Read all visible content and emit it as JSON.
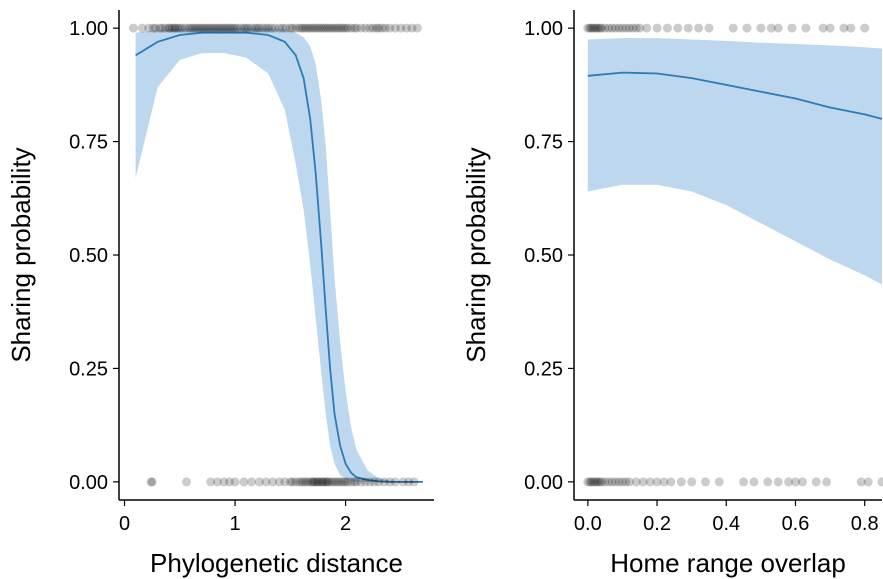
{
  "chart_data": [
    {
      "type": "line",
      "panel": "left",
      "xlabel": "Phylogenetic distance",
      "ylabel": "Sharing probability",
      "xlim": [
        -0.05,
        2.8
      ],
      "ylim": [
        -0.04,
        1.04
      ],
      "x_ticks": [
        0,
        1,
        2
      ],
      "x_tick_labels": [
        "0",
        "1",
        "2"
      ],
      "y_ticks": [
        0,
        0.25,
        0.5,
        0.75,
        1.0
      ],
      "y_tick_labels": [
        "0.00",
        "0.25",
        "0.50",
        "0.75",
        "1.00"
      ],
      "line_color": "#2c7bb6",
      "ribbon_color": "#bdd7ee",
      "point_color": "#000000",
      "fit": {
        "x": [
          0.1,
          0.3,
          0.5,
          0.7,
          0.9,
          1.1,
          1.3,
          1.45,
          1.55,
          1.62,
          1.68,
          1.73,
          1.78,
          1.82,
          1.86,
          1.9,
          1.95,
          2.0,
          2.05,
          2.1,
          2.2,
          2.3,
          2.4,
          2.5,
          2.7
        ],
        "y": [
          0.94,
          0.97,
          0.985,
          0.99,
          0.99,
          0.99,
          0.985,
          0.97,
          0.94,
          0.89,
          0.8,
          0.68,
          0.52,
          0.38,
          0.25,
          0.15,
          0.08,
          0.04,
          0.02,
          0.01,
          0.004,
          0.001,
          0.0,
          0.0,
          0.0
        ],
        "lower": [
          0.67,
          0.87,
          0.93,
          0.945,
          0.945,
          0.935,
          0.9,
          0.82,
          0.7,
          0.6,
          0.48,
          0.36,
          0.24,
          0.15,
          0.08,
          0.04,
          0.015,
          0.006,
          0.002,
          0.0,
          0.0,
          0.0,
          0.0,
          0.0,
          0.0
        ],
        "upper": [
          0.99,
          0.996,
          0.999,
          1.0,
          1.0,
          1.0,
          1.0,
          0.998,
          0.99,
          0.98,
          0.96,
          0.92,
          0.84,
          0.74,
          0.6,
          0.45,
          0.31,
          0.2,
          0.12,
          0.07,
          0.025,
          0.008,
          0.003,
          0.001,
          0.0
        ]
      },
      "points_y1": [
        0.08,
        0.16,
        0.22,
        0.26,
        0.28,
        0.32,
        0.34,
        0.37,
        0.4,
        0.41,
        0.43,
        0.45,
        0.46,
        0.48,
        0.5,
        0.52,
        0.55,
        0.58,
        0.6,
        0.62,
        0.64,
        0.66,
        0.68,
        0.7,
        0.72,
        0.74,
        0.76,
        0.78,
        0.8,
        0.82,
        0.84,
        0.86,
        0.88,
        0.9,
        0.92,
        0.94,
        0.96,
        0.98,
        1.0,
        1.02,
        1.05,
        1.08,
        1.1,
        1.12,
        1.15,
        1.18,
        1.2,
        1.22,
        1.25,
        1.28,
        1.3,
        1.33,
        1.36,
        1.4,
        1.43,
        1.46,
        1.5,
        1.52,
        1.55,
        1.58,
        1.6,
        1.62,
        1.64,
        1.66,
        1.68,
        1.7,
        1.72,
        1.74,
        1.76,
        1.78,
        1.8,
        1.82,
        1.84,
        1.86,
        1.88,
        1.9,
        1.92,
        1.94,
        1.96,
        1.98,
        2.0,
        2.02,
        2.05,
        2.08,
        2.1,
        2.14,
        2.18,
        2.22,
        2.25,
        2.28,
        2.3,
        2.33,
        2.36,
        2.4,
        2.45,
        2.5,
        2.55,
        2.6,
        2.65
      ],
      "points_y0": [
        0.24,
        0.25,
        0.56,
        0.78,
        0.84,
        0.9,
        0.95,
        1.0,
        1.08,
        1.15,
        1.22,
        1.28,
        1.34,
        1.4,
        1.45,
        1.5,
        1.52,
        1.55,
        1.58,
        1.6,
        1.62,
        1.64,
        1.66,
        1.68,
        1.7,
        1.71,
        1.72,
        1.74,
        1.75,
        1.76,
        1.78,
        1.79,
        1.8,
        1.82,
        1.83,
        1.84,
        1.86,
        1.88,
        1.9,
        1.92,
        1.94,
        1.96,
        1.98,
        2.0,
        2.02,
        2.05,
        2.08,
        2.1,
        2.14,
        2.18,
        2.22,
        2.26,
        2.3,
        2.35,
        2.4,
        2.45,
        2.52,
        2.57,
        2.62
      ]
    },
    {
      "type": "line",
      "panel": "right",
      "xlabel": "Home range overlap",
      "ylabel": "Sharing probability",
      "xlim": [
        -0.04,
        0.85
      ],
      "ylim": [
        -0.04,
        1.04
      ],
      "x_ticks": [
        0.0,
        0.2,
        0.4,
        0.6,
        0.8
      ],
      "x_tick_labels": [
        "0.0",
        "0.2",
        "0.4",
        "0.6",
        "0.8"
      ],
      "y_ticks": [
        0,
        0.25,
        0.5,
        0.75,
        1.0
      ],
      "y_tick_labels": [
        "0.00",
        "0.25",
        "0.50",
        "0.75",
        "1.00"
      ],
      "line_color": "#2c7bb6",
      "ribbon_color": "#bdd7ee",
      "point_color": "#000000",
      "fit": {
        "x": [
          0.0,
          0.1,
          0.2,
          0.3,
          0.4,
          0.5,
          0.6,
          0.7,
          0.8,
          0.85
        ],
        "y": [
          0.895,
          0.902,
          0.9,
          0.89,
          0.875,
          0.86,
          0.845,
          0.825,
          0.81,
          0.8
        ],
        "lower": [
          0.64,
          0.655,
          0.655,
          0.64,
          0.61,
          0.57,
          0.53,
          0.49,
          0.455,
          0.435
        ],
        "upper": [
          0.975,
          0.978,
          0.978,
          0.975,
          0.972,
          0.968,
          0.965,
          0.962,
          0.958,
          0.955
        ]
      },
      "points_y1": [
        0.0,
        0.005,
        0.01,
        0.015,
        0.02,
        0.025,
        0.03,
        0.035,
        0.04,
        0.05,
        0.06,
        0.07,
        0.08,
        0.09,
        0.1,
        0.11,
        0.12,
        0.13,
        0.14,
        0.15,
        0.17,
        0.2,
        0.23,
        0.26,
        0.29,
        0.32,
        0.35,
        0.42,
        0.46,
        0.5,
        0.53,
        0.55,
        0.59,
        0.63,
        0.68,
        0.7,
        0.74,
        0.76,
        0.8
      ],
      "points_y0": [
        0.0,
        0.005,
        0.01,
        0.015,
        0.02,
        0.025,
        0.03,
        0.035,
        0.04,
        0.05,
        0.06,
        0.07,
        0.08,
        0.09,
        0.1,
        0.11,
        0.12,
        0.14,
        0.16,
        0.18,
        0.2,
        0.22,
        0.24,
        0.27,
        0.3,
        0.34,
        0.38,
        0.45,
        0.48,
        0.52,
        0.55,
        0.58,
        0.6,
        0.62,
        0.66,
        0.69,
        0.79,
        0.81,
        0.85
      ]
    }
  ]
}
